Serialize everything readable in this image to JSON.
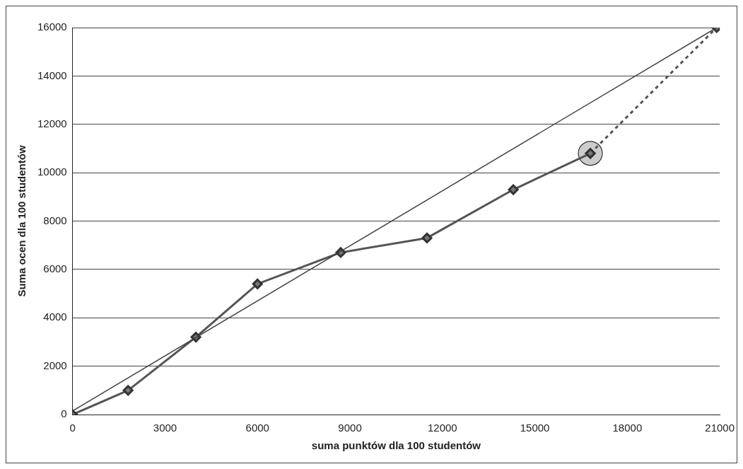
{
  "chart_data": {
    "type": "line",
    "xlabel": "suma punktów dla 100 studentów",
    "ylabel": "Suma ocen dla 100 studentów",
    "xlim": [
      0,
      21000
    ],
    "xticks": [
      0,
      3000,
      6000,
      9000,
      12000,
      15000,
      18000,
      21000
    ],
    "ylim": [
      0,
      16000
    ],
    "yticks": [
      0,
      2000,
      4000,
      6000,
      8000,
      10000,
      12000,
      14000,
      16000
    ],
    "grid": "y",
    "legend": false,
    "series": [
      {
        "color": "#404040",
        "x": [
          0,
          20900
        ],
        "values": [
          150,
          16000
        ],
        "line_style": "solid"
      },
      {
        "color": "#555555",
        "x": [
          0,
          1800,
          4000,
          6000,
          8700,
          11500,
          14300,
          16800
        ],
        "values": [
          0,
          1000,
          3200,
          5400,
          6700,
          7300,
          9300,
          10800
        ],
        "marker": "diamond",
        "line_style": "solid"
      },
      {
        "color": "#555555",
        "x": [
          16800,
          20900
        ],
        "values": [
          10800,
          16000
        ],
        "marker": "diamond",
        "line_style": "dashed"
      },
      {
        "type": "scatter",
        "color": "#cccccc",
        "x": [
          16800
        ],
        "values": [
          10800
        ],
        "marker": "circle"
      }
    ]
  }
}
